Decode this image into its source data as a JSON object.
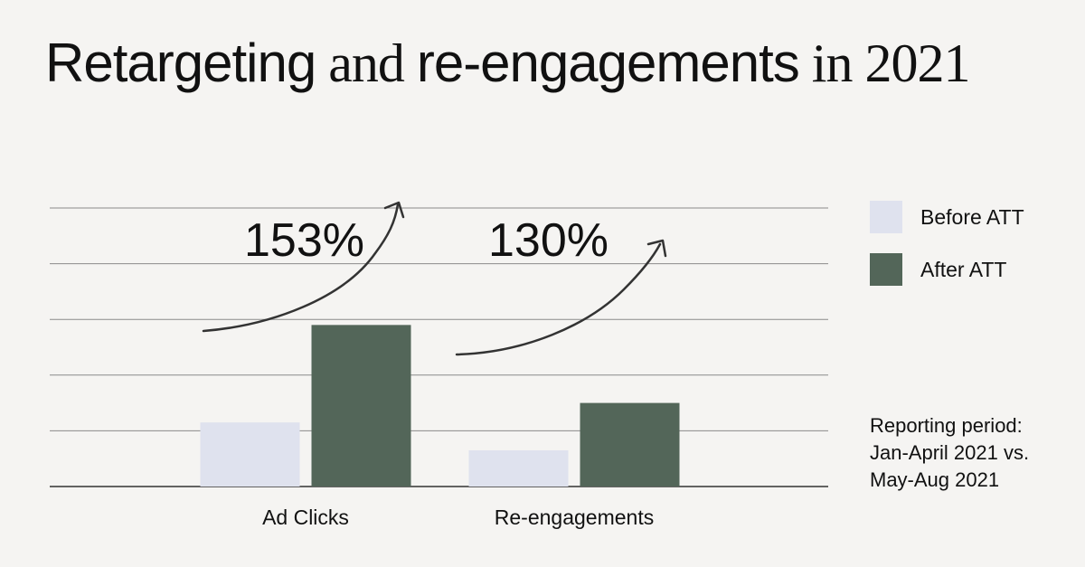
{
  "title": {
    "parts": [
      {
        "text": "Retargeting",
        "style": "sans"
      },
      {
        "text": " and ",
        "style": "serif"
      },
      {
        "text": "re-engagements",
        "style": "sans"
      },
      {
        "text": " in 2021",
        "style": "serif"
      }
    ]
  },
  "legend": {
    "items": [
      {
        "label": "Before ATT",
        "color": "#dfe2ee"
      },
      {
        "label": "After ATT",
        "color": "#536659"
      }
    ]
  },
  "note": {
    "lines": [
      "Reporting period:",
      "Jan-April 2021 vs.",
      "May-Aug 2021"
    ]
  },
  "chart_data": {
    "type": "bar",
    "categories": [
      "Ad Clicks",
      "Re-engagements"
    ],
    "series": [
      {
        "name": "Before ATT",
        "values": [
          1.15,
          0.65
        ],
        "color": "#dfe2ee"
      },
      {
        "name": "After ATT",
        "values": [
          2.9,
          1.5
        ],
        "color": "#536659"
      }
    ],
    "annotations": [
      {
        "category": "Ad Clicks",
        "text": "153%"
      },
      {
        "category": "Re-engagements",
        "text": "130%"
      }
    ],
    "ylim": [
      0,
      5
    ],
    "grid": true,
    "legend": "right"
  }
}
